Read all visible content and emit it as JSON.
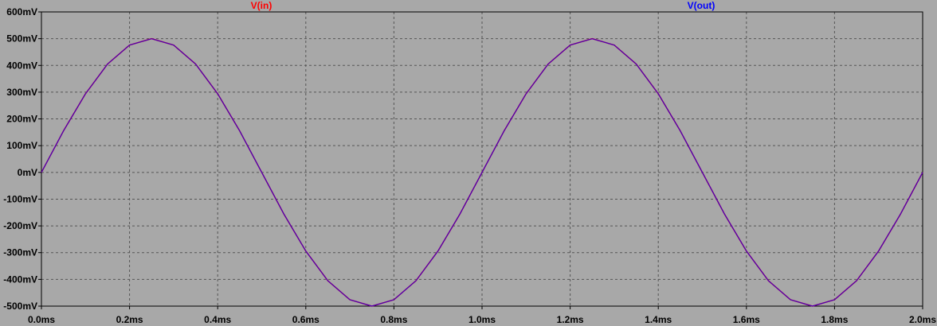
{
  "chart_data": {
    "type": "line",
    "xlabel": "",
    "ylabel": "",
    "x_unit": "ms",
    "y_unit": "mV",
    "xlim": [
      0.0,
      2.0
    ],
    "ylim": [
      -500,
      600
    ],
    "x_ticks": [
      0.0,
      0.2,
      0.4,
      0.6,
      0.8,
      1.0,
      1.2,
      1.4,
      1.6,
      1.8,
      2.0
    ],
    "x_tick_labels": [
      "0.0ms",
      "0.2ms",
      "0.4ms",
      "0.6ms",
      "0.8ms",
      "1.0ms",
      "1.2ms",
      "1.4ms",
      "1.6ms",
      "1.8ms",
      "2.0ms"
    ],
    "y_ticks": [
      600,
      500,
      400,
      300,
      200,
      100,
      0,
      -100,
      -200,
      -300,
      -400,
      -500
    ],
    "y_tick_labels": [
      "600mV",
      "500mV",
      "400mV",
      "300mV",
      "200mV",
      "100mV",
      "0mV",
      "-100mV",
      "-200mV",
      "-300mV",
      "-400mV",
      "-500mV"
    ],
    "grid": true,
    "grid_style": "dashed",
    "background_color": "#a8a8a8",
    "legend_position": "top",
    "series": [
      {
        "name": "V(in)",
        "color": "#ff0000",
        "x": [
          0.0,
          0.05,
          0.1,
          0.15,
          0.2,
          0.25,
          0.3,
          0.35,
          0.4,
          0.45,
          0.5,
          0.55,
          0.6,
          0.65,
          0.7,
          0.75,
          0.8,
          0.85,
          0.9,
          0.95,
          1.0,
          1.05,
          1.1,
          1.15,
          1.2,
          1.25,
          1.3,
          1.35,
          1.4,
          1.45,
          1.5,
          1.55,
          1.6,
          1.65,
          1.7,
          1.75,
          1.8,
          1.85,
          1.9,
          1.95,
          2.0
        ],
        "y": [
          0,
          155,
          294,
          405,
          476,
          500,
          476,
          405,
          294,
          155,
          0,
          -155,
          -294,
          -405,
          -476,
          -500,
          -476,
          -405,
          -294,
          -155,
          0,
          155,
          294,
          405,
          476,
          500,
          476,
          405,
          294,
          155,
          0,
          -155,
          -294,
          -405,
          -476,
          -500,
          -476,
          -405,
          -294,
          -155,
          0
        ]
      },
      {
        "name": "V(out)",
        "color": "#0000ff",
        "x": [
          0.0,
          0.05,
          0.1,
          0.15,
          0.2,
          0.25,
          0.3,
          0.35,
          0.4,
          0.45,
          0.5,
          0.55,
          0.6,
          0.65,
          0.7,
          0.75,
          0.8,
          0.85,
          0.9,
          0.95,
          1.0,
          1.05,
          1.1,
          1.15,
          1.2,
          1.25,
          1.3,
          1.35,
          1.4,
          1.45,
          1.5,
          1.55,
          1.6,
          1.65,
          1.7,
          1.75,
          1.8,
          1.85,
          1.9,
          1.95,
          2.0
        ],
        "y": [
          0,
          155,
          294,
          405,
          476,
          500,
          476,
          405,
          294,
          155,
          0,
          -155,
          -294,
          -405,
          -476,
          -500,
          -476,
          -405,
          -294,
          -155,
          0,
          155,
          294,
          405,
          476,
          500,
          476,
          405,
          294,
          155,
          0,
          -155,
          -294,
          -405,
          -476,
          -500,
          -476,
          -405,
          -294,
          -155,
          0
        ]
      }
    ]
  }
}
